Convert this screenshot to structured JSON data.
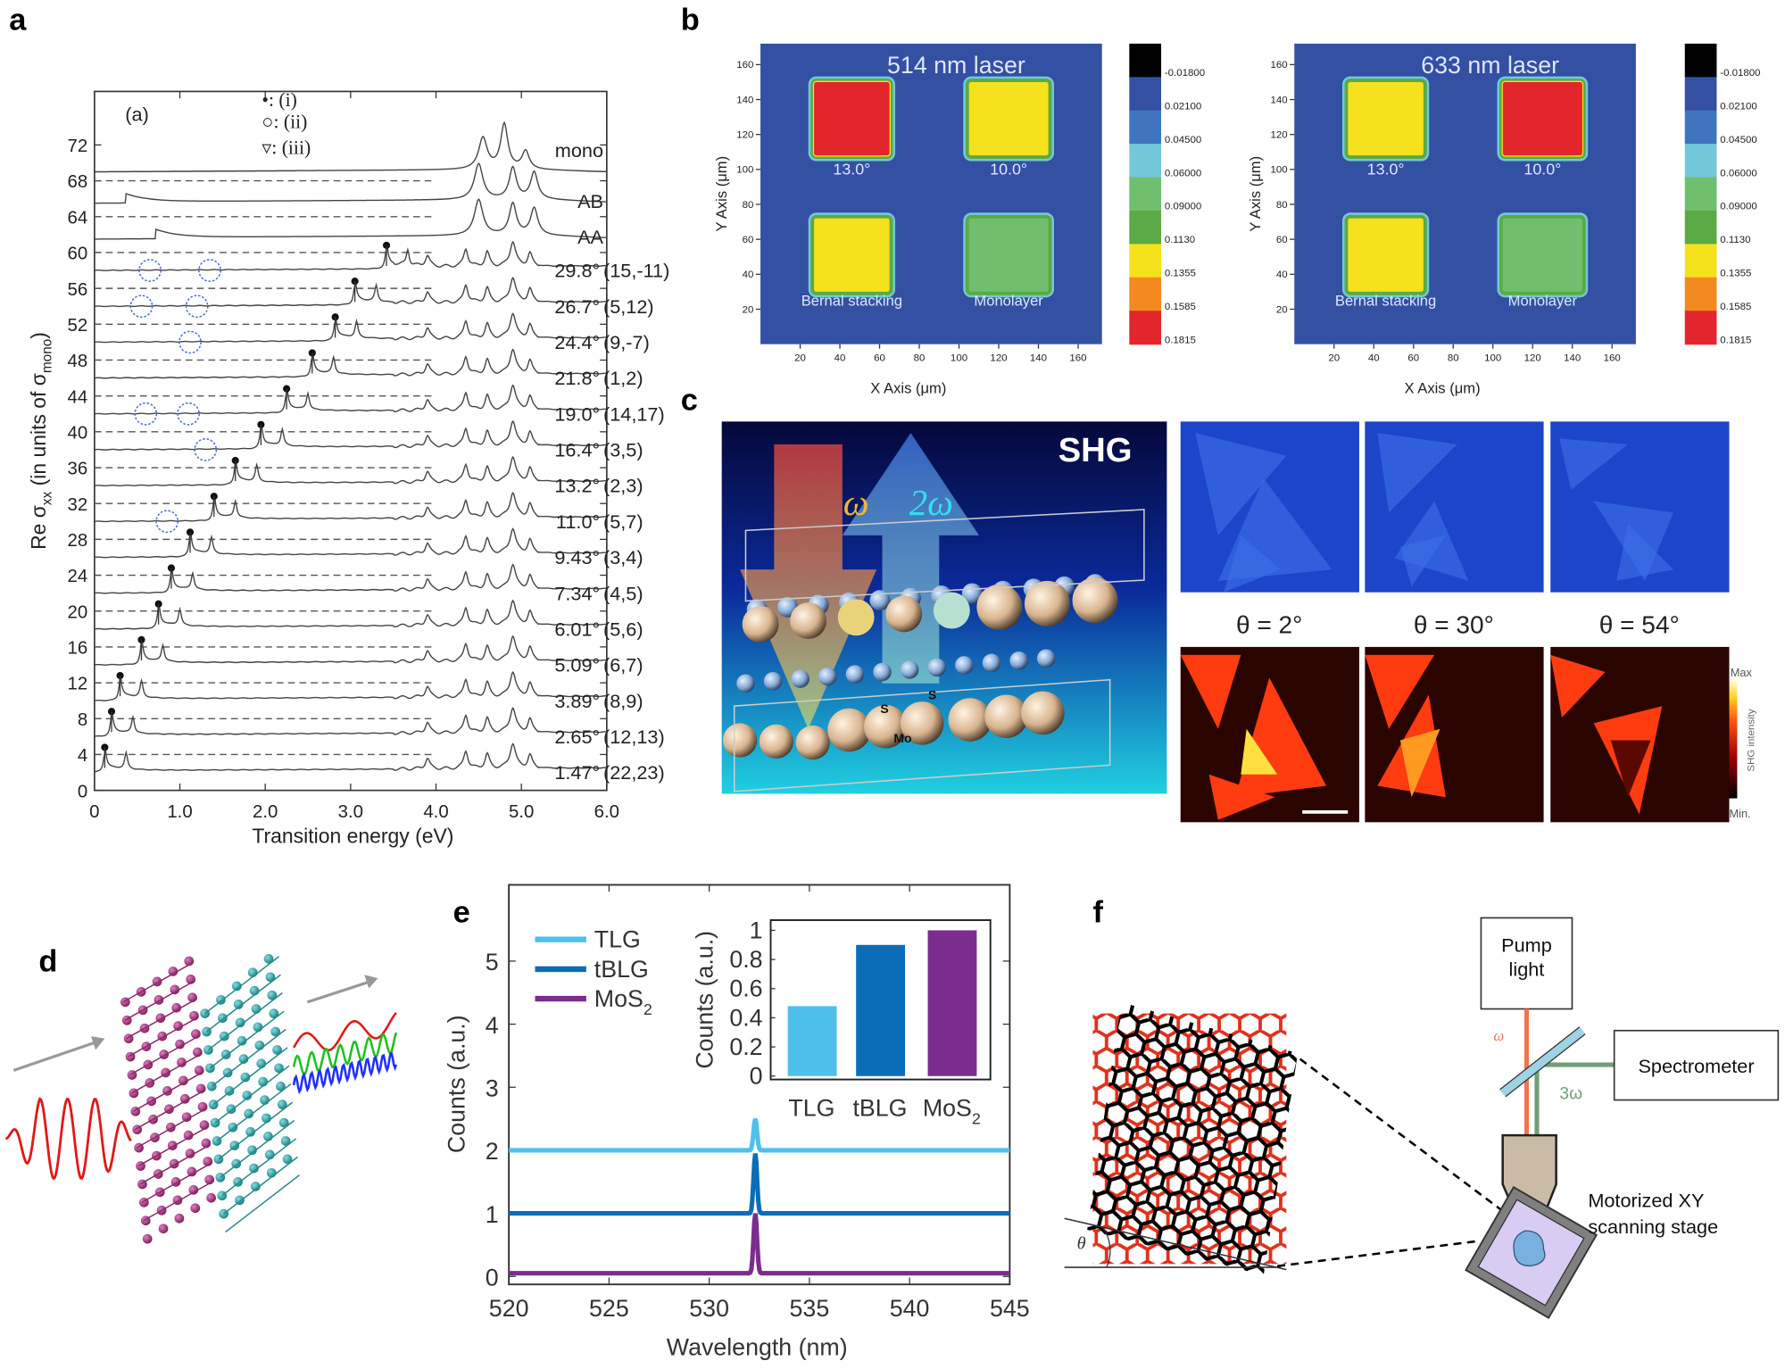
{
  "panel_labels": {
    "a": "a",
    "b": "b",
    "c": "c",
    "d": "d",
    "e": "e",
    "f": "f"
  },
  "panel_a": {
    "inner_label": "(a)",
    "legend": [
      {
        "symbol": "•",
        "text": ": (i)"
      },
      {
        "symbol": "○",
        "text": ": (ii)"
      },
      {
        "symbol": "▿",
        "text": ": (iii)"
      }
    ]
  },
  "panel_b": {
    "x_axis_label": "X Axis (μm)",
    "y_axis_label": "Y Axis (μm)"
  },
  "panel_c": {
    "title": "SHG",
    "omega": "ω",
    "two_omega": "2ω",
    "atom_s": "S",
    "atom_mo": "Mo",
    "theta_labels": [
      "θ = 2°",
      "θ = 30°",
      "θ = 54°"
    ],
    "colorbar_max": "Max",
    "colorbar_min": "Min.",
    "colorbar_title": "SHG intensity",
    "colors": {
      "optical_bg": "#1d45c9",
      "shg_bg": "#2a0500",
      "shg_flake": "#ff3b10",
      "shg_bright": "#ffe040"
    }
  },
  "panel_f": {
    "pump_light_line1": "Pump",
    "pump_light_line2": "light",
    "spectrometer": "Spectrometer",
    "omega": "ω",
    "three_omega": "3ω",
    "stage_line1": "Motorized XY",
    "stage_line2": "scanning stage",
    "theta": "θ",
    "colors": {
      "pump": "#f2734f",
      "signal": "#6f9f78",
      "mirror": "#9fd3e3",
      "objective": "#c9bba5",
      "stage": "#7f7f7f",
      "sample": "#d9ccf2"
    }
  },
  "chart_data": [
    {
      "id": "a",
      "type": "line",
      "xlabel": "Transition energy (eV)",
      "ylabel_parts": [
        "Re σ",
        "xx",
        " (in units of σ",
        "mono",
        ")"
      ],
      "xlim": [
        0,
        6.0
      ],
      "ylim": [
        0,
        78
      ],
      "xticks": [
        "0",
        "1.0",
        "2.0",
        "3.0",
        "4.0",
        "5.0",
        "6.0"
      ],
      "yticks": [
        0,
        4,
        8,
        12,
        16,
        20,
        24,
        28,
        32,
        36,
        40,
        44,
        48,
        52,
        56,
        60,
        64,
        68,
        72
      ],
      "dashed_reference_levels": [
        4,
        8,
        12,
        16,
        20,
        24,
        28,
        32,
        36,
        40,
        44,
        48,
        52,
        56,
        60,
        64,
        68
      ],
      "series": [
        {
          "name": "mono",
          "angle": "",
          "index": "",
          "offset": 69,
          "low_peak_eV": null
        },
        {
          "name": "AB",
          "angle": "",
          "index": "",
          "offset": 65.5,
          "low_peak_eV": 0.37
        },
        {
          "name": "AA",
          "angle": "",
          "index": "",
          "offset": 61.5,
          "low_peak_eV": 0.72
        },
        {
          "name": "29.8°",
          "angle": "29.8°",
          "index": "(15,-11)",
          "offset": 58,
          "low_peak_eV": 3.42
        },
        {
          "name": "26.7°",
          "angle": "26.7°",
          "index": "(5,12)",
          "offset": 54,
          "low_peak_eV": 3.05
        },
        {
          "name": "24.4°",
          "angle": "24.4°",
          "index": "(9,-7)",
          "offset": 50,
          "low_peak_eV": 2.82
        },
        {
          "name": "21.8°",
          "angle": "21.8°",
          "index": "(1,2)",
          "offset": 46,
          "low_peak_eV": 2.55
        },
        {
          "name": "19.0°",
          "angle": "19.0°",
          "index": "(14,17)",
          "offset": 42,
          "low_peak_eV": 2.25
        },
        {
          "name": "16.4°",
          "angle": "16.4°",
          "index": "(3,5)",
          "offset": 38,
          "low_peak_eV": 1.95
        },
        {
          "name": "13.2°",
          "angle": "13.2°",
          "index": "(2,3)",
          "offset": 34,
          "low_peak_eV": 1.65
        },
        {
          "name": "11.0°",
          "angle": "11.0°",
          "index": "(5,7)",
          "offset": 30,
          "low_peak_eV": 1.4
        },
        {
          "name": "9.43°",
          "angle": "9.43°",
          "index": "(3,4)",
          "offset": 26,
          "low_peak_eV": 1.12
        },
        {
          "name": "7.34°",
          "angle": "7.34°",
          "index": "(4,5)",
          "offset": 22,
          "low_peak_eV": 0.9
        },
        {
          "name": "6.01°",
          "angle": "6.01°",
          "index": "(5,6)",
          "offset": 18,
          "low_peak_eV": 0.75
        },
        {
          "name": "5.09°",
          "angle": "5.09°",
          "index": "(6,7)",
          "offset": 14,
          "low_peak_eV": 0.55
        },
        {
          "name": "3.89°",
          "angle": "3.89°",
          "index": "(8,9)",
          "offset": 10,
          "low_peak_eV": 0.3
        },
        {
          "name": "2.65°",
          "angle": "2.65°",
          "index": "(12,13)",
          "offset": 6,
          "low_peak_eV": 0.2
        },
        {
          "name": "1.47°",
          "angle": "1.47°",
          "index": "(22,23)",
          "offset": 2,
          "low_peak_eV": 0.12
        }
      ],
      "highlight_circles": [
        [
          0.65,
          58
        ],
        [
          1.35,
          58
        ],
        [
          0.55,
          54
        ],
        [
          1.2,
          54
        ],
        [
          1.12,
          50
        ],
        [
          0.6,
          42
        ],
        [
          1.1,
          42
        ],
        [
          1.3,
          38
        ],
        [
          0.85,
          30
        ]
      ]
    },
    {
      "id": "b",
      "type": "heatmap",
      "xlim": [
        0,
        172
      ],
      "ylim": [
        0,
        172
      ],
      "xticks": [
        20,
        40,
        60,
        80,
        100,
        120,
        140,
        160
      ],
      "yticks": [
        20,
        40,
        60,
        80,
        100,
        120,
        140,
        160
      ],
      "colorbar_labels": [
        "-0.01800",
        "0.02100",
        "0.04500",
        "0.06000",
        "0.09000",
        "0.1130",
        "0.1355",
        "0.1585",
        "0.1815"
      ],
      "colorbar_colors": [
        "#000000",
        "#3350a3",
        "#3f74bf",
        "#72c8d8",
        "#6fbf6f",
        "#5aaa45",
        "#f5e11c",
        "#f28a20",
        "#e3262b"
      ],
      "maps": [
        {
          "title": "514 nm laser",
          "regions": [
            {
              "label": "13.0°",
              "x": [
                27,
                65
              ],
              "y": [
                108,
                150
              ],
              "level": "0.1815",
              "color": "#e3262b"
            },
            {
              "label": "10.0°",
              "x": [
                105,
                145
              ],
              "y": [
                108,
                150
              ],
              "level": "0.1355",
              "color": "#f5e11c"
            },
            {
              "label": "Bernal stacking",
              "x": [
                27,
                65
              ],
              "y": [
                30,
                72
              ],
              "level": "0.1355",
              "color": "#f5e11c"
            },
            {
              "label": "Monolayer",
              "x": [
                105,
                145
              ],
              "y": [
                30,
                72
              ],
              "level": "0.09000",
              "color": "#6fbf6f"
            }
          ]
        },
        {
          "title": "633 nm laser",
          "regions": [
            {
              "label": "13.0°",
              "x": [
                27,
                65
              ],
              "y": [
                108,
                150
              ],
              "level": "0.1355",
              "color": "#f5e11c"
            },
            {
              "label": "10.0°",
              "x": [
                105,
                145
              ],
              "y": [
                108,
                150
              ],
              "level": "0.1815",
              "color": "#e3262b"
            },
            {
              "label": "Bernal stacking",
              "x": [
                27,
                65
              ],
              "y": [
                30,
                72
              ],
              "level": "0.1355",
              "color": "#f5e11c"
            },
            {
              "label": "Monolayer",
              "x": [
                105,
                145
              ],
              "y": [
                30,
                72
              ],
              "level": "0.09000",
              "color": "#6fbf6f"
            }
          ]
        }
      ]
    },
    {
      "id": "e",
      "type": "line",
      "xlabel": "Wavelength (nm)",
      "ylabel": "Counts (a.u.)",
      "xlim": [
        520,
        545
      ],
      "ylim": [
        -0.13,
        6.2
      ],
      "xticks": [
        520,
        525,
        530,
        535,
        540,
        545
      ],
      "yticks": [
        0,
        1,
        2,
        3,
        4,
        5
      ],
      "peak_nm": 532.3,
      "series": [
        {
          "name": "TLG",
          "baseline": 2.0,
          "peak": 2.5,
          "color": "#4fc0ec"
        },
        {
          "name": "tBLG",
          "baseline": 1.0,
          "peak": 1.95,
          "color": "#0b6db8"
        },
        {
          "name": "MoS",
          "sub": "2",
          "baseline": 0.05,
          "peak": 1.0,
          "color": "#7b2d8e"
        }
      ]
    },
    {
      "id": "e-inset",
      "type": "bar",
      "ylabel": "Counts (a.u.)",
      "ylim": [
        0,
        1.07
      ],
      "yticks": [
        "0",
        "0.2",
        "0.4",
        "0.6",
        "0.8",
        "1"
      ],
      "categories": [
        {
          "name": "TLG"
        },
        {
          "name": "tBLG"
        },
        {
          "name": "MoS",
          "sub": "2"
        }
      ],
      "values": [
        0.48,
        0.9,
        1.0
      ],
      "colors": [
        "#4fc0ec",
        "#0b6db8",
        "#7b2d8e"
      ]
    }
  ]
}
